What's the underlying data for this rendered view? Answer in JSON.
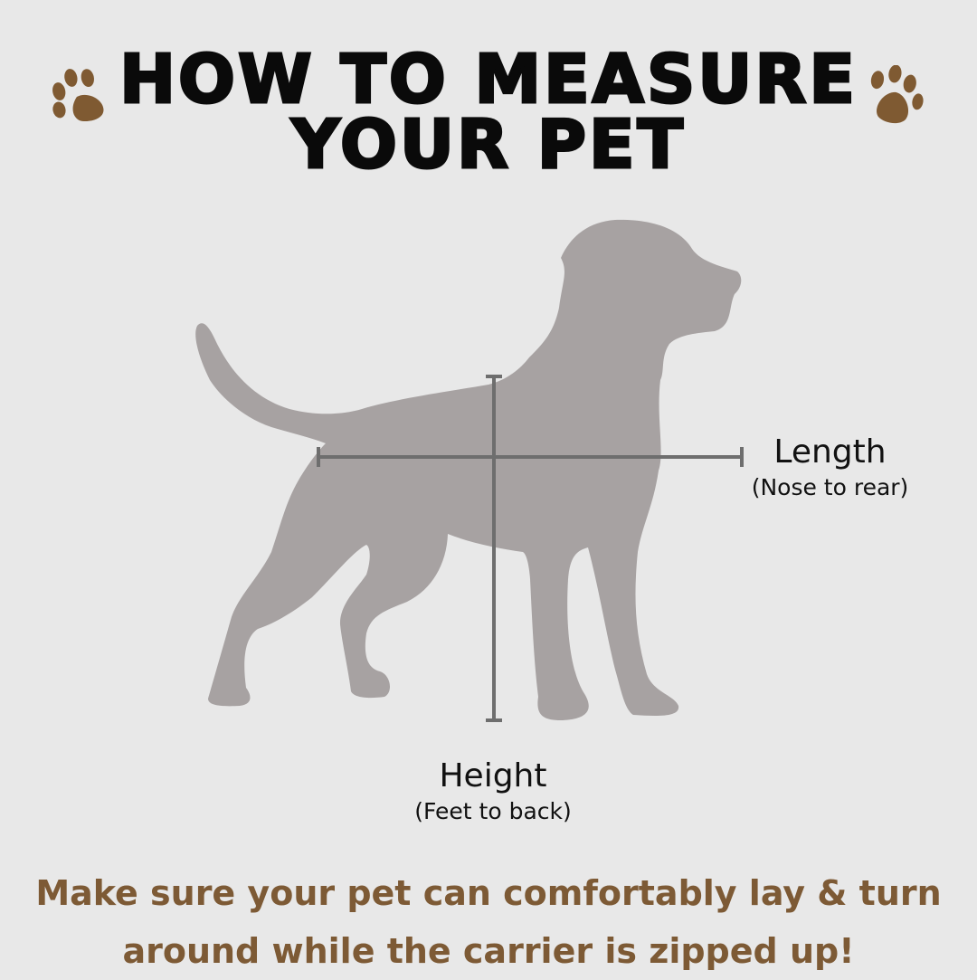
{
  "title": {
    "line1": "HOW TO MEASURE",
    "line2": "YOUR PET"
  },
  "icons": {
    "left": "paw-print-icon",
    "right": "paw-print-icon",
    "figure": "dog-silhouette"
  },
  "colors": {
    "background": "#e8e8e8",
    "paw": "#7f5a32",
    "dog": "#a7a2a2",
    "measure_line": "#6e6e6e",
    "note": "#7d5a35"
  },
  "length": {
    "label": "Length",
    "sub": "(Nose to rear)"
  },
  "height": {
    "label": "Height",
    "sub": "(Feet to back)"
  },
  "note": {
    "line1": "Make sure your pet can comfortably lay & turn",
    "line2": "around while the carrier is zipped up!"
  }
}
